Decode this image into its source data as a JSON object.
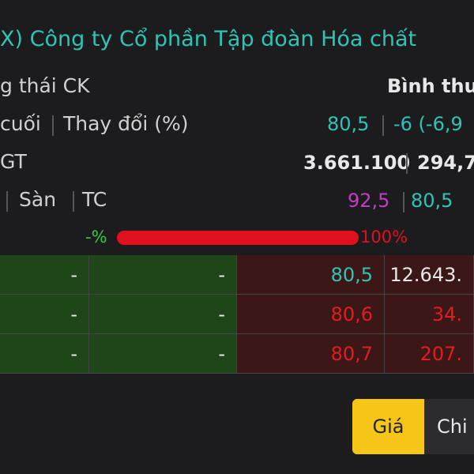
{
  "header": {
    "title": "X) Công ty Cổ phần Tập đoàn Hóa chất"
  },
  "info": {
    "rows": [
      {
        "labels": [
          "g thái CK"
        ],
        "values": [
          "Bình thư"
        ]
      },
      {
        "labels": [
          "cuối",
          "Thay đổi (%)"
        ],
        "values": [
          "80,5",
          "-6 (-6,9"
        ]
      },
      {
        "labels": [
          "GT"
        ],
        "values": [
          "3.661.100",
          "294,7"
        ]
      },
      {
        "labels": [
          "Sàn",
          "TC"
        ],
        "values": [
          "92,5",
          "80,5"
        ]
      }
    ]
  },
  "range_bar": {
    "min_label": "-%",
    "max_label": "100%"
  },
  "order_book": {
    "rows": [
      [
        "-",
        "-",
        "80,5",
        "12.643."
      ],
      [
        "-",
        "-",
        "80,6",
        "34."
      ],
      [
        "-",
        "-",
        "80,7",
        "207."
      ]
    ]
  },
  "tabs": [
    "Giá",
    "Chi"
  ]
}
